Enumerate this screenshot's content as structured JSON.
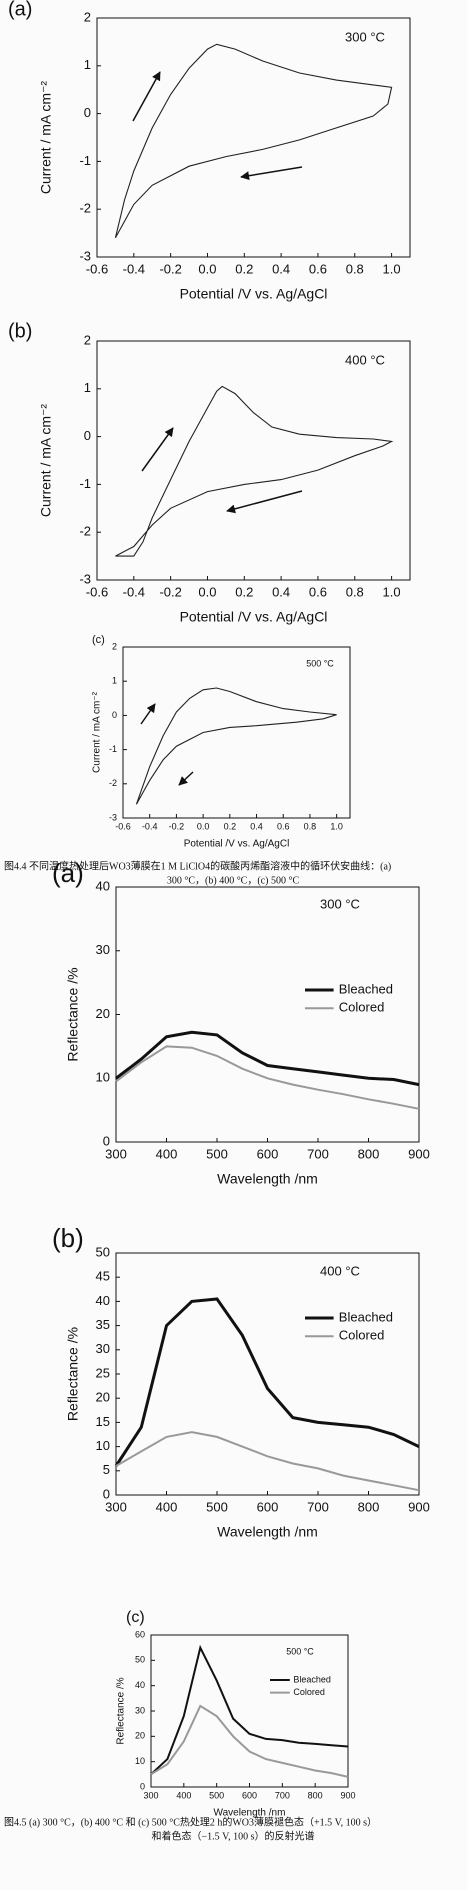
{
  "chart_data": [
    {
      "type": "line",
      "panel_label": "(a)",
      "annotation": "300 °C",
      "xlabel": "Potential /V vs. Ag/AgCl",
      "ylabel": "Current / mA cm⁻²",
      "x": [
        -0.5,
        -0.45,
        -0.4,
        -0.3,
        -0.2,
        -0.1,
        0,
        0.05,
        0.15,
        0.3,
        0.5,
        0.7,
        0.9,
        1.0,
        0.98,
        0.9,
        0.7,
        0.5,
        0.3,
        0.1,
        -0.1,
        -0.3,
        -0.4,
        -0.5
      ],
      "series": [
        {
          "color": "#222222",
          "values": [
            -2.6,
            -1.8,
            -1.2,
            -0.3,
            0.4,
            0.95,
            1.35,
            1.45,
            1.35,
            1.1,
            0.85,
            0.7,
            0.6,
            0.55,
            0.2,
            -0.05,
            -0.3,
            -0.55,
            -0.75,
            -0.9,
            -1.1,
            -1.5,
            -1.9,
            -2.6
          ]
        }
      ],
      "xlim": [
        -0.6,
        1.1
      ],
      "ylim": [
        -3,
        2
      ],
      "xticks": [
        -0.6,
        -0.4,
        -0.2,
        {
          "value": 0,
          "label": "0.0"
        },
        0.2,
        0.4,
        0.6,
        0.8,
        {
          "value": 1,
          "label": "1.0"
        }
      ],
      "yticks": [
        -3,
        -2,
        -1,
        0,
        1,
        2
      ]
    },
    {
      "type": "line",
      "panel_label": "(b)",
      "annotation": "400 °C",
      "xlabel": "Potential /V vs. Ag/AgCl",
      "ylabel": "Current / mA cm⁻²",
      "x": [
        -0.5,
        -0.4,
        -0.35,
        -0.3,
        -0.2,
        -0.1,
        0,
        0.05,
        0.08,
        0.15,
        0.25,
        0.35,
        0.5,
        0.7,
        0.9,
        1.0,
        0.95,
        0.8,
        0.6,
        0.4,
        0.2,
        0,
        -0.2,
        -0.3,
        -0.4,
        -0.5
      ],
      "series": [
        {
          "color": "#222222",
          "values": [
            -2.5,
            -2.5,
            -2.2,
            -1.7,
            -0.9,
            -0.1,
            0.6,
            0.95,
            1.05,
            0.9,
            0.5,
            0.2,
            0.05,
            -0.02,
            -0.05,
            -0.1,
            -0.2,
            -0.4,
            -0.7,
            -0.9,
            -1.0,
            -1.15,
            -1.5,
            -1.85,
            -2.3,
            -2.5
          ]
        }
      ],
      "xlim": [
        -0.6,
        1.1
      ],
      "ylim": [
        -3,
        2
      ],
      "xticks": [
        -0.6,
        -0.4,
        -0.2,
        {
          "value": 0,
          "label": "0.0"
        },
        0.2,
        0.4,
        0.6,
        0.8,
        {
          "value": 1,
          "label": "1.0"
        }
      ],
      "yticks": [
        -3,
        -2,
        -1,
        0,
        1,
        2
      ]
    },
    {
      "type": "line",
      "panel_label": "(c)",
      "annotation": "500 °C",
      "xlabel": "Potential /V vs. Ag/AgCl",
      "ylabel": "Current / mA cm⁻²",
      "x": [
        -0.5,
        -0.4,
        -0.3,
        -0.2,
        -0.1,
        0,
        0.1,
        0.2,
        0.4,
        0.6,
        0.8,
        1.0,
        0.9,
        0.7,
        0.4,
        0.2,
        0,
        -0.2,
        -0.3,
        -0.4,
        -0.5
      ],
      "series": [
        {
          "color": "#222222",
          "values": [
            -2.6,
            -1.5,
            -0.6,
            0.1,
            0.5,
            0.75,
            0.8,
            0.7,
            0.4,
            0.2,
            0.1,
            0.02,
            -0.1,
            -0.2,
            -0.3,
            -0.35,
            -0.5,
            -0.9,
            -1.3,
            -1.9,
            -2.6
          ]
        }
      ],
      "xlim": [
        -0.6,
        1.1
      ],
      "ylim": [
        -3,
        2
      ],
      "xticks": [
        -0.6,
        -0.4,
        -0.2,
        {
          "value": 0,
          "label": "0.0"
        },
        0.2,
        0.4,
        0.6,
        0.8,
        {
          "value": 1,
          "label": "1.0"
        }
      ],
      "yticks": [
        -3,
        -2,
        -1,
        0,
        1,
        2
      ]
    },
    {
      "type": "line",
      "panel_label": "(a)",
      "annotation": "300 °C",
      "xlabel": "Wavelength /nm",
      "ylabel": "Reflectance /%",
      "legend": "right",
      "x": [
        300,
        350,
        400,
        450,
        500,
        550,
        600,
        650,
        700,
        750,
        800,
        850,
        900
      ],
      "series": [
        {
          "name": "Bleached",
          "color": "#111111",
          "values": [
            10,
            13,
            16.5,
            17.2,
            16.8,
            14,
            12,
            11.5,
            11,
            10.5,
            10,
            9.8,
            9
          ]
        },
        {
          "name": "Colored",
          "color": "#999999",
          "values": [
            9.5,
            12.5,
            15,
            14.8,
            13.5,
            11.5,
            10,
            9,
            8.2,
            7.5,
            6.7,
            6,
            5.2
          ]
        }
      ],
      "xlim": [
        300,
        900
      ],
      "ylim": [
        0,
        40
      ],
      "xticks": [
        300,
        400,
        500,
        600,
        700,
        800,
        900
      ],
      "yticks": [
        0,
        10,
        20,
        30,
        40
      ]
    },
    {
      "type": "line",
      "panel_label": "(b)",
      "annotation": "400 °C",
      "xlabel": "Wavelength /nm",
      "ylabel": "Reflectance /%",
      "legend": "right",
      "x": [
        300,
        350,
        400,
        450,
        500,
        550,
        600,
        650,
        700,
        750,
        800,
        850,
        900
      ],
      "series": [
        {
          "name": "Bleached",
          "color": "#111111",
          "values": [
            6,
            14,
            35,
            40,
            40.5,
            33,
            22,
            16,
            15,
            14.5,
            14,
            12.5,
            10
          ]
        },
        {
          "name": "Colored",
          "color": "#999999",
          "values": [
            6,
            9,
            12,
            13,
            12,
            10,
            8,
            6.5,
            5.5,
            4,
            3,
            2,
            1
          ]
        }
      ],
      "xlim": [
        300,
        900
      ],
      "ylim": [
        0,
        50
      ],
      "xticks": [
        300,
        400,
        500,
        600,
        700,
        800,
        900
      ],
      "yticks": [
        0,
        5,
        10,
        15,
        20,
        25,
        30,
        35,
        40,
        45,
        50
      ]
    },
    {
      "type": "line",
      "panel_label": "(c)",
      "annotation": "500 °C",
      "xlabel": "Wavelength /nm",
      "ylabel": "Reflectance /%",
      "legend": "right",
      "x": [
        300,
        350,
        400,
        450,
        500,
        550,
        600,
        650,
        700,
        750,
        800,
        850,
        900
      ],
      "series": [
        {
          "name": "Bleached",
          "color": "#111111",
          "values": [
            5,
            11,
            28,
            55,
            42,
            27,
            21,
            19,
            18.5,
            17.5,
            17,
            16.5,
            16
          ]
        },
        {
          "name": "Colored",
          "color": "#999999",
          "values": [
            5,
            9,
            18,
            32,
            28,
            20,
            14,
            11,
            9.5,
            8,
            6.5,
            5.5,
            4
          ]
        }
      ],
      "xlim": [
        300,
        900
      ],
      "ylim": [
        0,
        60
      ],
      "xticks": [
        300,
        400,
        500,
        600,
        700,
        800,
        900
      ],
      "yticks": [
        0,
        10,
        20,
        30,
        40,
        50,
        60
      ]
    }
  ],
  "captions": [
    [
      "图4.4 不同温度热处理后WO3薄膜在1 M LiClO4的碳酸丙烯酯溶液中的循环伏安曲线：(a)",
      "300 °C，(b) 400 °C，(c) 500 °C"
    ],
    [
      "图4.5 (a) 300 °C，(b) 400 °C 和 (c) 500 °C热处理2 h的WO3薄膜褪色态（+1.5 V, 100 s）",
      "和着色态（−1.5 V, 100 s）的反射光谱"
    ]
  ]
}
